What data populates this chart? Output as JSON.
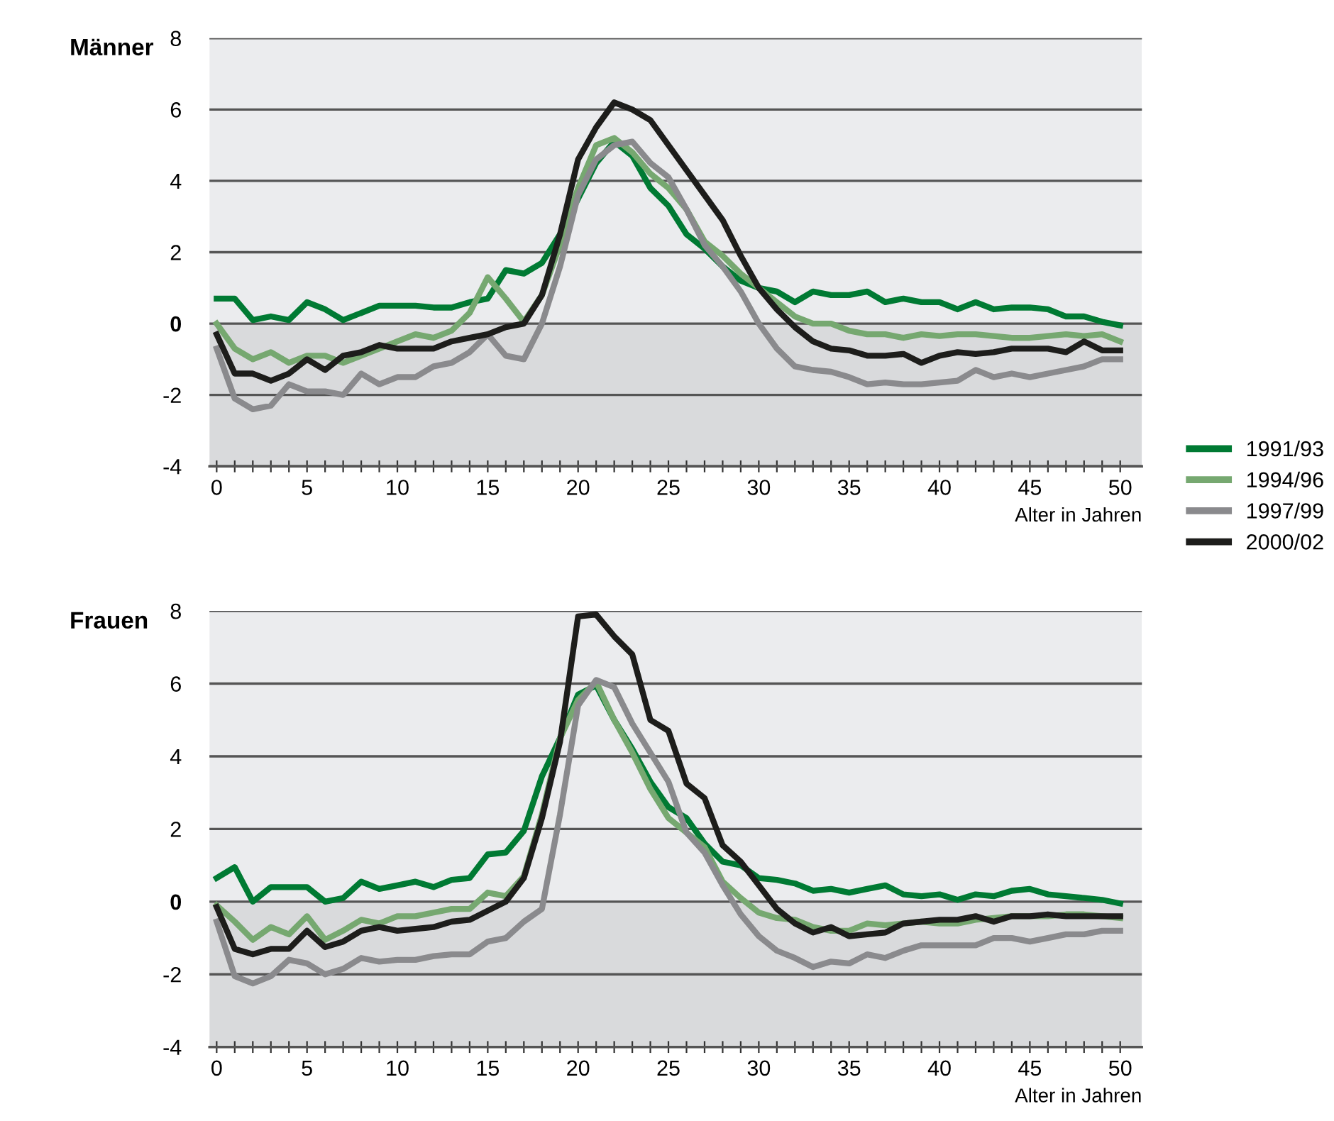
{
  "chart_data": [
    {
      "type": "line",
      "title": "Männer",
      "xlabel": "Alter in Jahren",
      "x": [
        0,
        1,
        2,
        3,
        4,
        5,
        6,
        7,
        8,
        9,
        10,
        11,
        12,
        13,
        14,
        15,
        16,
        17,
        18,
        19,
        20,
        21,
        22,
        23,
        24,
        25,
        26,
        27,
        28,
        29,
        30,
        31,
        32,
        33,
        34,
        35,
        36,
        37,
        38,
        39,
        40,
        41,
        42,
        43,
        44,
        45,
        46,
        47,
        48,
        49,
        50
      ],
      "series": [
        {
          "name": "1991/93",
          "color": "#007a33",
          "values": [
            0.7,
            0.7,
            0.1,
            0.2,
            0.1,
            0.6,
            0.4,
            0.1,
            0.3,
            0.5,
            0.5,
            0.5,
            0.45,
            0.45,
            0.6,
            0.7,
            1.5,
            1.4,
            1.7,
            2.5,
            3.5,
            4.5,
            5.1,
            4.7,
            3.8,
            3.3,
            2.5,
            2.1,
            1.6,
            1.2,
            1.0,
            0.9,
            0.6,
            0.9,
            0.8,
            0.8,
            0.9,
            0.6,
            0.7,
            0.6,
            0.6,
            0.4,
            0.6,
            0.4,
            0.45,
            0.45,
            0.4,
            0.2,
            0.2,
            0.05,
            -0.05
          ]
        },
        {
          "name": "1994/96",
          "color": "#76a870",
          "values": [
            0,
            -0.7,
            -1.0,
            -0.8,
            -1.1,
            -0.9,
            -0.9,
            -1.1,
            -0.9,
            -0.7,
            -0.5,
            -0.3,
            -0.4,
            -0.2,
            0.3,
            1.3,
            0.7,
            0.05,
            0.8,
            2.2,
            3.8,
            5.0,
            5.2,
            4.8,
            4.2,
            3.8,
            3.2,
            2.3,
            1.9,
            1.4,
            1.0,
            0.6,
            0.2,
            0,
            0,
            -0.2,
            -0.3,
            -0.3,
            -0.4,
            -0.3,
            -0.35,
            -0.3,
            -0.3,
            -0.35,
            -0.4,
            -0.4,
            -0.35,
            -0.3,
            -0.35,
            -0.3,
            -0.5
          ]
        },
        {
          "name": "1997/99",
          "color": "#8a8a8d",
          "values": [
            -0.7,
            -2.1,
            -2.4,
            -2.3,
            -1.7,
            -1.9,
            -1.9,
            -2.0,
            -1.4,
            -1.7,
            -1.5,
            -1.5,
            -1.2,
            -1.1,
            -0.8,
            -0.3,
            -0.9,
            -1.0,
            0.0,
            1.6,
            3.6,
            4.6,
            5.0,
            5.1,
            4.5,
            4.1,
            3.2,
            2.2,
            1.6,
            0.9,
            0,
            -0.7,
            -1.2,
            -1.3,
            -1.35,
            -1.5,
            -1.7,
            -1.65,
            -1.7,
            -1.7,
            -1.65,
            -1.6,
            -1.3,
            -1.5,
            -1.4,
            -1.5,
            -1.4,
            -1.3,
            -1.2,
            -1.0,
            -1.0
          ]
        },
        {
          "name": "2000/02",
          "color": "#1d1d1b",
          "values": [
            -0.3,
            -1.4,
            -1.4,
            -1.6,
            -1.4,
            -1.0,
            -1.3,
            -0.9,
            -0.8,
            -0.6,
            -0.7,
            -0.7,
            -0.7,
            -0.5,
            -0.4,
            -0.3,
            -0.1,
            0.0,
            0.8,
            2.5,
            4.6,
            5.5,
            6.2,
            6.0,
            5.7,
            5.0,
            4.3,
            3.6,
            2.9,
            1.9,
            1.0,
            0.4,
            -0.1,
            -0.5,
            -0.7,
            -0.75,
            -0.9,
            -0.9,
            -0.85,
            -1.1,
            -0.9,
            -0.8,
            -0.85,
            -0.8,
            -0.7,
            -0.7,
            -0.7,
            -0.8,
            -0.5,
            -0.75,
            -0.75
          ]
        }
      ],
      "xlim": [
        -0.4,
        51.2
      ],
      "ylim": [
        -4,
        8
      ],
      "yticks": [
        -4,
        -2,
        0,
        2,
        4,
        6,
        8
      ],
      "xticks": [
        0,
        {
          "value": 1,
          "label": null
        },
        {
          "value": 2,
          "label": null
        },
        {
          "value": 3,
          "label": null
        },
        {
          "value": 4,
          "label": null
        },
        5,
        {
          "value": 6,
          "label": null
        },
        {
          "value": 7,
          "label": null
        },
        {
          "value": 8,
          "label": null
        },
        {
          "value": 9,
          "label": null
        },
        10,
        {
          "value": 11,
          "label": null
        },
        {
          "value": 12,
          "label": null
        },
        {
          "value": 13,
          "label": null
        },
        {
          "value": 14,
          "label": null
        },
        15,
        {
          "value": 16,
          "label": null
        },
        {
          "value": 17,
          "label": null
        },
        {
          "value": 18,
          "label": null
        },
        {
          "value": 19,
          "label": null
        },
        20,
        {
          "value": 21,
          "label": null
        },
        {
          "value": 22,
          "label": null
        },
        {
          "value": 23,
          "label": null
        },
        {
          "value": 24,
          "label": null
        },
        25,
        {
          "value": 26,
          "label": null
        },
        {
          "value": 27,
          "label": null
        },
        {
          "value": 28,
          "label": null
        },
        {
          "value": 29,
          "label": null
        },
        30,
        {
          "value": 31,
          "label": null
        },
        {
          "value": 32,
          "label": null
        },
        {
          "value": 33,
          "label": null
        },
        {
          "value": 34,
          "label": null
        },
        35,
        {
          "value": 36,
          "label": null
        },
        {
          "value": 37,
          "label": null
        },
        {
          "value": 38,
          "label": null
        },
        {
          "value": 39,
          "label": null
        },
        40,
        {
          "value": 41,
          "label": null
        },
        {
          "value": 42,
          "label": null
        },
        {
          "value": 43,
          "label": null
        },
        {
          "value": 44,
          "label": null
        },
        45,
        {
          "value": 46,
          "label": null
        },
        {
          "value": 47,
          "label": null
        },
        {
          "value": 48,
          "label": null
        },
        {
          "value": 49,
          "label": null
        },
        50
      ],
      "bands": [
        {
          "axis": "y",
          "from": 0,
          "to": 8,
          "color": "#ebecee"
        },
        {
          "axis": "y",
          "from": -4,
          "to": 0,
          "color": "#d9dadc"
        }
      ],
      "grid": "y",
      "legend": "bottom right",
      "line_style": "solid"
    },
    {
      "type": "line",
      "title": "Frauen",
      "xlabel": "Alter in Jahren",
      "x": [
        0,
        1,
        2,
        3,
        4,
        5,
        6,
        7,
        8,
        9,
        10,
        11,
        12,
        13,
        14,
        15,
        16,
        17,
        18,
        19,
        20,
        21,
        22,
        23,
        24,
        25,
        26,
        27,
        28,
        29,
        30,
        31,
        32,
        33,
        34,
        35,
        36,
        37,
        38,
        39,
        40,
        41,
        42,
        43,
        44,
        45,
        46,
        47,
        48,
        49,
        50
      ],
      "series": [
        {
          "name": "1991/93",
          "color": "#007a33",
          "values": [
            0.65,
            0.95,
            0,
            0.4,
            0.4,
            0.4,
            0,
            0.1,
            0.55,
            0.35,
            0.45,
            0.55,
            0.4,
            0.6,
            0.65,
            1.3,
            1.35,
            1.95,
            3.45,
            4.5,
            5.7,
            5.95,
            5.0,
            4.2,
            3.3,
            2.6,
            2.3,
            1.6,
            1.1,
            1.0,
            0.65,
            0.6,
            0.5,
            0.3,
            0.35,
            0.25,
            0.35,
            0.45,
            0.2,
            0.15,
            0.2,
            0.05,
            0.2,
            0.15,
            0.3,
            0.35,
            0.2,
            0.15,
            0.1,
            0.05,
            -0.05
          ]
        },
        {
          "name": "1994/96",
          "color": "#76a870",
          "values": [
            -0.1,
            -0.55,
            -1.05,
            -0.7,
            -0.9,
            -0.4,
            -1.05,
            -0.8,
            -0.5,
            -0.6,
            -0.4,
            -0.4,
            -0.3,
            -0.2,
            -0.2,
            0.25,
            0.15,
            0.7,
            2.4,
            4.5,
            5.55,
            6.05,
            5.0,
            4.1,
            3.1,
            2.3,
            1.9,
            1.5,
            0.55,
            0.1,
            -0.3,
            -0.45,
            -0.5,
            -0.7,
            -0.8,
            -0.8,
            -0.6,
            -0.65,
            -0.6,
            -0.55,
            -0.6,
            -0.6,
            -0.5,
            -0.45,
            -0.4,
            -0.4,
            -0.4,
            -0.35,
            -0.35,
            -0.4,
            -0.45
          ]
        },
        {
          "name": "1997/99",
          "color": "#8a8a8d",
          "values": [
            -0.55,
            -2.05,
            -2.25,
            -2.05,
            -1.6,
            -1.7,
            -2.0,
            -1.85,
            -1.55,
            -1.65,
            -1.6,
            -1.6,
            -1.5,
            -1.45,
            -1.45,
            -1.1,
            -1.0,
            -0.55,
            -0.2,
            2.4,
            5.4,
            6.1,
            5.9,
            4.9,
            4.1,
            3.3,
            1.9,
            1.35,
            0.45,
            -0.35,
            -0.95,
            -1.35,
            -1.55,
            -1.8,
            -1.65,
            -1.7,
            -1.45,
            -1.55,
            -1.35,
            -1.2,
            -1.2,
            -1.2,
            -1.2,
            -1.0,
            -1.0,
            -1.1,
            -1.0,
            -0.9,
            -0.9,
            -0.8,
            -0.8
          ]
        },
        {
          "name": "2000/02",
          "color": "#1d1d1b",
          "values": [
            -0.15,
            -1.3,
            -1.45,
            -1.3,
            -1.3,
            -0.8,
            -1.25,
            -1.1,
            -0.8,
            -0.7,
            -0.8,
            -0.75,
            -0.7,
            -0.55,
            -0.5,
            -0.25,
            0,
            0.65,
            2.3,
            4.4,
            7.85,
            7.9,
            7.3,
            6.8,
            5.0,
            4.7,
            3.25,
            2.85,
            1.55,
            1.1,
            0.45,
            -0.2,
            -0.6,
            -0.85,
            -0.7,
            -0.95,
            -0.9,
            -0.85,
            -0.6,
            -0.55,
            -0.5,
            -0.5,
            -0.4,
            -0.55,
            -0.4,
            -0.4,
            -0.35,
            -0.4,
            -0.4,
            -0.4,
            -0.4
          ]
        }
      ],
      "xlim": [
        -0.4,
        51.2
      ],
      "ylim": [
        -4,
        8
      ],
      "yticks": [
        -4,
        -2,
        0,
        2,
        4,
        6,
        8
      ],
      "xticks": [
        0,
        {
          "value": 1,
          "label": null
        },
        {
          "value": 2,
          "label": null
        },
        {
          "value": 3,
          "label": null
        },
        {
          "value": 4,
          "label": null
        },
        5,
        {
          "value": 6,
          "label": null
        },
        {
          "value": 7,
          "label": null
        },
        {
          "value": 8,
          "label": null
        },
        {
          "value": 9,
          "label": null
        },
        10,
        {
          "value": 11,
          "label": null
        },
        {
          "value": 12,
          "label": null
        },
        {
          "value": 13,
          "label": null
        },
        {
          "value": 14,
          "label": null
        },
        15,
        {
          "value": 16,
          "label": null
        },
        {
          "value": 17,
          "label": null
        },
        {
          "value": 18,
          "label": null
        },
        {
          "value": 19,
          "label": null
        },
        20,
        {
          "value": 21,
          "label": null
        },
        {
          "value": 22,
          "label": null
        },
        {
          "value": 23,
          "label": null
        },
        {
          "value": 24,
          "label": null
        },
        25,
        {
          "value": 26,
          "label": null
        },
        {
          "value": 27,
          "label": null
        },
        {
          "value": 28,
          "label": null
        },
        {
          "value": 29,
          "label": null
        },
        30,
        {
          "value": 31,
          "label": null
        },
        {
          "value": 32,
          "label": null
        },
        {
          "value": 33,
          "label": null
        },
        {
          "value": 34,
          "label": null
        },
        35,
        {
          "value": 36,
          "label": null
        },
        {
          "value": 37,
          "label": null
        },
        {
          "value": 38,
          "label": null
        },
        {
          "value": 39,
          "label": null
        },
        40,
        {
          "value": 41,
          "label": null
        },
        {
          "value": 42,
          "label": null
        },
        {
          "value": 43,
          "label": null
        },
        {
          "value": 44,
          "label": null
        },
        45,
        {
          "value": 46,
          "label": null
        },
        {
          "value": 47,
          "label": null
        },
        {
          "value": 48,
          "label": null
        },
        {
          "value": 49,
          "label": null
        },
        50
      ],
      "bands": [
        {
          "axis": "y",
          "from": 0,
          "to": 8,
          "color": "#ebecee"
        },
        {
          "axis": "y",
          "from": -4,
          "to": 0,
          "color": "#d9dadc"
        }
      ],
      "grid": "y",
      "line_style": "solid"
    }
  ]
}
